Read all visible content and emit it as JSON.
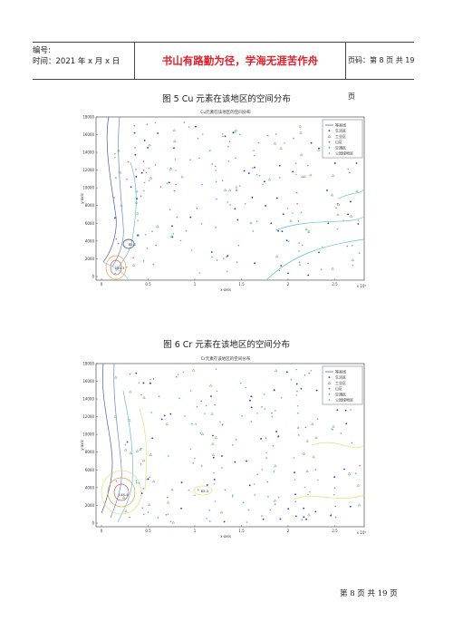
{
  "header": {
    "number_label": "编号:",
    "time_label": "时间：2021 年 x 月 x 日",
    "slogan": "书山有路勤为径，学海无涯苦作舟",
    "page_info": "页码：第 8 页  共 19 页"
  },
  "figures": [
    {
      "caption": "图 5      Cu 元素在该地区的空间分布",
      "plot_title": "Cu元素在该地区的空间分布",
      "xlabel": "x-axis",
      "ylabel": "y-axis",
      "x_ticks": [
        "0",
        "0.5",
        "1",
        "1.5",
        "2",
        "2.5"
      ],
      "y_ticks": [
        "0",
        "2000",
        "4000",
        "6000",
        "8000",
        "10000",
        "12000",
        "14000",
        "16000",
        "18000"
      ],
      "x_exponent": "x 10⁴",
      "contour_labels": [
        "85.0",
        "250.3"
      ]
    },
    {
      "caption": "图 6      Cr 元素在该地区的空间分布",
      "plot_title": "Cr元素在该地区的空间分布",
      "xlabel": "x-axis",
      "ylabel": "y-axis",
      "x_ticks": [
        "0",
        "0.5",
        "1",
        "1.5",
        "2",
        "2.5"
      ],
      "y_ticks": [
        "0",
        "2000",
        "4000",
        "6000",
        "8000",
        "10000",
        "12000",
        "14000",
        "16000",
        "18000"
      ],
      "x_exponent": "x 10⁴",
      "contour_labels": [
        "148.4",
        "82.3"
      ]
    }
  ],
  "legend": {
    "items": [
      {
        "label": "等高线",
        "color": "#3a6ed0",
        "marker": "line"
      },
      {
        "label": "生活区",
        "color": "#2233cc",
        "marker": "dot"
      },
      {
        "label": "工业区",
        "color": "#3aa040",
        "marker": "triangle"
      },
      {
        "label": "山区",
        "color": "#e0507a",
        "marker": "dot"
      },
      {
        "label": "交通区",
        "color": "#20b8c8",
        "marker": "dot"
      },
      {
        "label": "公园绿地区",
        "color": "#9a9a9a",
        "marker": "dot"
      }
    ]
  },
  "footer": "第 8 页  共 19 页"
}
